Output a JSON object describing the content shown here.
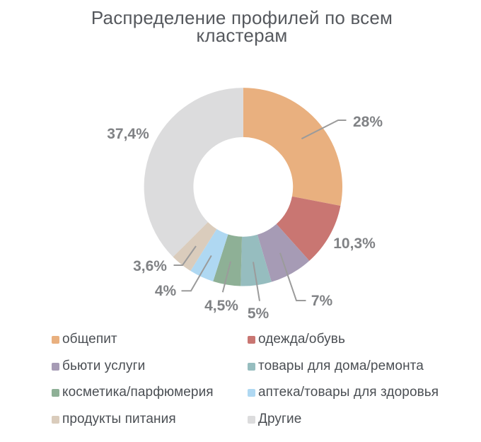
{
  "chart_data": {
    "type": "pie",
    "subtype": "donut",
    "title": "Распределение профилей по всем кластерам",
    "title_lines": [
      "Распределение профилей по всем",
      "кластерам"
    ],
    "legend_position": "bottom",
    "slices": [
      {
        "label": "общепит",
        "value": 28,
        "pct_text": "28%",
        "color": "#e9b07f"
      },
      {
        "label": "одежда/обувь",
        "value": 10.3,
        "pct_text": "10,3%",
        "color": "#c97672"
      },
      {
        "label": "бьюти услуги",
        "value": 7,
        "pct_text": "7%",
        "color": "#a69bb5"
      },
      {
        "label": "товары для дома/ремонта",
        "value": 5,
        "pct_text": "5%",
        "color": "#96bdbf"
      },
      {
        "label": "косметика/парфюмерия",
        "value": 4.5,
        "pct_text": "4,5%",
        "color": "#8eb096"
      },
      {
        "label": "аптека/товары для здоровья",
        "value": 4,
        "pct_text": "4%",
        "color": "#afd8f2"
      },
      {
        "label": "продукты питания",
        "value": 3.6,
        "pct_text": "3,6%",
        "color": "#daccbc"
      },
      {
        "label": "Другие",
        "value": 37.4,
        "pct_text": "37,4%",
        "color": "#dcdcdd"
      }
    ],
    "colors": {
      "leader_line": "#9b9b9b",
      "title_text": "#56595e",
      "pct_label_text": "#808285",
      "legend_text": "#4b4f54",
      "background": "#ffffff"
    }
  }
}
